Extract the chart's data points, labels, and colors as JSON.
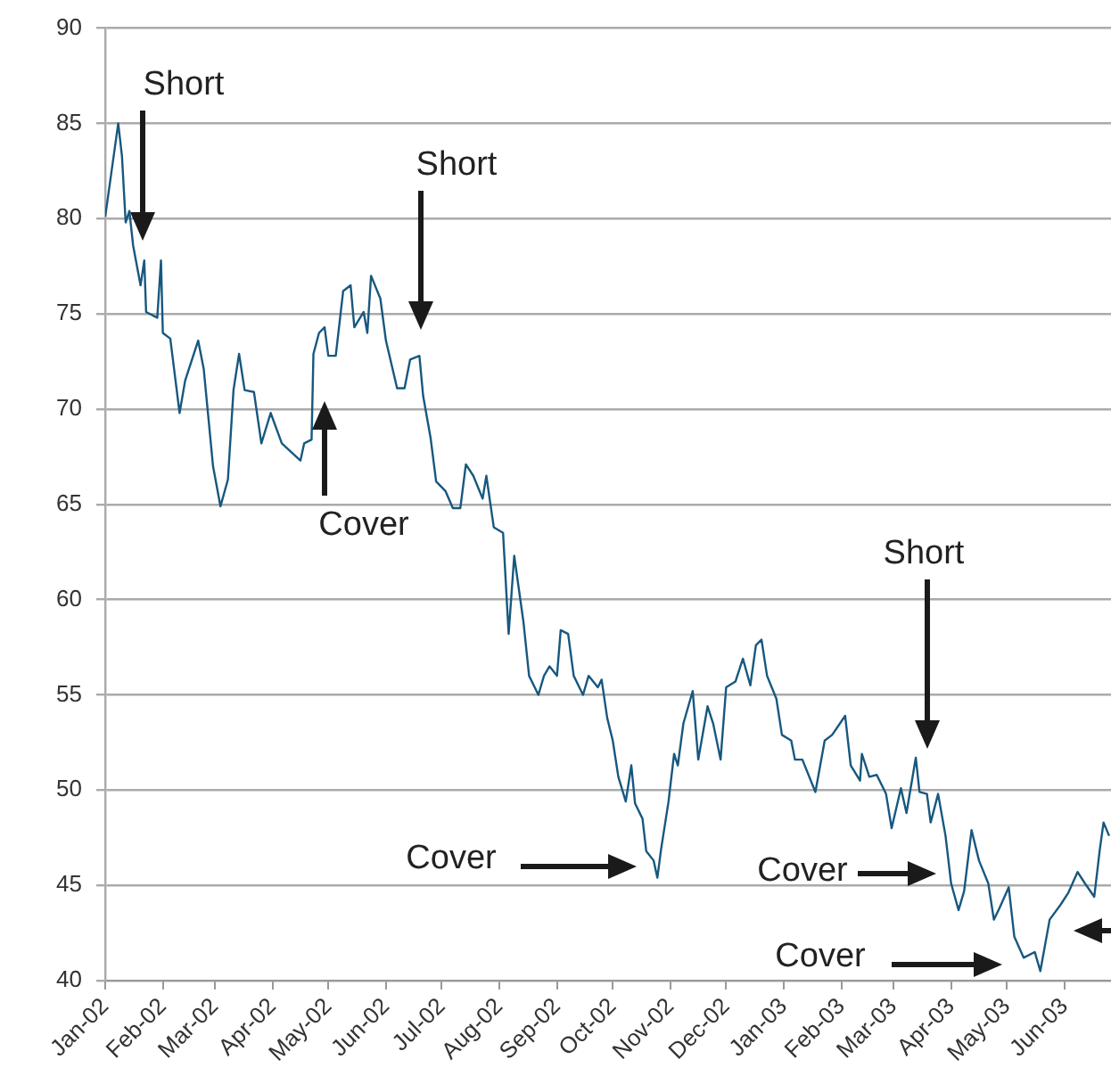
{
  "chart_data": {
    "type": "line",
    "x": [
      "2002-01-01",
      "2002-01-08",
      "2002-01-10",
      "2002-01-12",
      "2002-01-14",
      "2002-01-16",
      "2002-01-20",
      "2002-01-22",
      "2002-01-23",
      "2002-01-29",
      "2002-01-31",
      "2002-02-01",
      "2002-02-05",
      "2002-02-10",
      "2002-02-13",
      "2002-02-20",
      "2002-02-23",
      "2002-02-28",
      "2002-03-04",
      "2002-03-08",
      "2002-03-11",
      "2002-03-14",
      "2002-03-17",
      "2002-03-22",
      "2002-03-26",
      "2002-03-31",
      "2002-04-06",
      "2002-04-16",
      "2002-04-18",
      "2002-04-22",
      "2002-04-23",
      "2002-04-26",
      "2002-04-29",
      "2002-05-01",
      "2002-05-05",
      "2002-05-09",
      "2002-05-13",
      "2002-05-15",
      "2002-05-20",
      "2002-05-22",
      "2002-05-24",
      "2002-05-29",
      "2002-06-01",
      "2002-06-07",
      "2002-06-11",
      "2002-06-14",
      "2002-06-19",
      "2002-06-21",
      "2002-06-25",
      "2002-06-28",
      "2002-07-03",
      "2002-07-07",
      "2002-07-11",
      "2002-07-14",
      "2002-07-18",
      "2002-07-23",
      "2002-07-25",
      "2002-07-29",
      "2002-08-03",
      "2002-08-06",
      "2002-08-09",
      "2002-08-14",
      "2002-08-17",
      "2002-08-22",
      "2002-08-25",
      "2002-08-28",
      "2002-09-01",
      "2002-09-03",
      "2002-09-07",
      "2002-09-10",
      "2002-09-15",
      "2002-09-18",
      "2002-09-23",
      "2002-09-25",
      "2002-09-28",
      "2002-10-01",
      "2002-10-04",
      "2002-10-08",
      "2002-10-11",
      "2002-10-13",
      "2002-10-17",
      "2002-10-19",
      "2002-10-23",
      "2002-10-25",
      "2002-10-27",
      "2002-10-31",
      "2002-11-03",
      "2002-11-05",
      "2002-11-08",
      "2002-11-13",
      "2002-11-16",
      "2002-11-21",
      "2002-11-24",
      "2002-11-28",
      "2002-12-01",
      "2002-12-06",
      "2002-12-10",
      "2002-12-14",
      "2002-12-17",
      "2002-12-20",
      "2002-12-23",
      "2002-12-28",
      "2002-12-31",
      "2003-01-05",
      "2003-01-07",
      "2003-01-11",
      "2003-01-18",
      "2003-01-23",
      "2003-01-27",
      "2003-02-03",
      "2003-02-06",
      "2003-02-11",
      "2003-02-12",
      "2003-02-16",
      "2003-02-20",
      "2003-02-25",
      "2003-02-28",
      "2003-03-05",
      "2003-03-08",
      "2003-03-13",
      "2003-03-15",
      "2003-03-19",
      "2003-03-21",
      "2003-03-25",
      "2003-03-29",
      "2003-04-01",
      "2003-04-05",
      "2003-04-08",
      "2003-04-12",
      "2003-04-16",
      "2003-04-21",
      "2003-04-24",
      "2003-04-27",
      "2003-05-02",
      "2003-05-05",
      "2003-05-10",
      "2003-05-16",
      "2003-05-19",
      "2003-05-24",
      "2003-05-30",
      "2003-06-03",
      "2003-06-08",
      "2003-06-12",
      "2003-06-17",
      "2003-06-20",
      "2003-06-22",
      "2003-06-25"
    ],
    "series": [
      {
        "color": "#17587f",
        "values": [
          80.1,
          85.0,
          83.3,
          79.8,
          80.4,
          78.6,
          76.5,
          77.8,
          75.1,
          74.8,
          77.8,
          74.0,
          73.7,
          69.8,
          71.5,
          73.6,
          72.1,
          67.0,
          64.9,
          66.3,
          71.0,
          72.9,
          71.0,
          70.9,
          68.2,
          69.8,
          68.2,
          67.3,
          68.2,
          68.4,
          72.9,
          74.0,
          74.3,
          72.8,
          72.8,
          76.2,
          76.5,
          74.3,
          75.1,
          74.0,
          77.0,
          75.8,
          73.6,
          71.1,
          71.1,
          72.6,
          72.8,
          70.7,
          68.5,
          66.2,
          65.7,
          64.8,
          64.8,
          67.1,
          66.5,
          65.3,
          66.5,
          63.8,
          63.5,
          58.2,
          62.3,
          58.8,
          56.0,
          55.0,
          56.0,
          56.5,
          56.0,
          58.4,
          58.2,
          56.0,
          55.0,
          56.0,
          55.4,
          55.8,
          53.8,
          52.6,
          50.7,
          49.4,
          51.3,
          49.3,
          48.5,
          46.8,
          46.3,
          45.4,
          46.9,
          49.4,
          51.9,
          51.3,
          53.5,
          55.2,
          51.6,
          54.4,
          53.5,
          51.6,
          55.4,
          55.7,
          56.9,
          55.5,
          57.6,
          57.9,
          56.0,
          54.8,
          52.9,
          52.6,
          51.6,
          51.6,
          49.9,
          52.6,
          52.9,
          53.9,
          51.3,
          50.5,
          51.9,
          50.7,
          50.8,
          49.8,
          48.0,
          50.1,
          48.8,
          51.7,
          49.9,
          49.8,
          48.3,
          49.8,
          47.6,
          45.1,
          43.7,
          44.7,
          47.9,
          46.3,
          45.1,
          43.2,
          43.8,
          44.9,
          42.3,
          41.2,
          41.5,
          40.5,
          43.2,
          44.0,
          44.6,
          45.7,
          45.1,
          44.4,
          46.9,
          48.3,
          47.6
        ]
      }
    ],
    "xlim": [
      "2002-01-01",
      "2003-06-26"
    ],
    "xticks": [
      {
        "value": "2002-01-01",
        "label": "Jan-02"
      },
      {
        "value": "2002-02-01",
        "label": "Feb-02"
      },
      {
        "value": "2002-03-01",
        "label": "Mar-02"
      },
      {
        "value": "2002-04-01",
        "label": "Apr-02"
      },
      {
        "value": "2002-05-01",
        "label": "May-02"
      },
      {
        "value": "2002-06-01",
        "label": "Jun-02"
      },
      {
        "value": "2002-07-01",
        "label": "Jul-02"
      },
      {
        "value": "2002-08-01",
        "label": "Aug-02"
      },
      {
        "value": "2002-09-01",
        "label": "Sep-02"
      },
      {
        "value": "2002-10-01",
        "label": "Oct-02"
      },
      {
        "value": "2002-11-01",
        "label": "Nov-02"
      },
      {
        "value": "2002-12-01",
        "label": "Dec-02"
      },
      {
        "value": "2003-01-01",
        "label": "Jan-03"
      },
      {
        "value": "2003-02-01",
        "label": "Feb-03"
      },
      {
        "value": "2003-03-01",
        "label": "Mar-03"
      },
      {
        "value": "2003-04-01",
        "label": "Apr-03"
      },
      {
        "value": "2003-05-01",
        "label": "May-03"
      },
      {
        "value": "2003-06-01",
        "label": "Jun-03"
      }
    ],
    "ylim": [
      40,
      90
    ],
    "yticks": [
      40,
      45,
      50,
      55,
      60,
      65,
      70,
      75,
      80,
      85,
      90
    ],
    "grid": "y",
    "legend": false,
    "marker": "none",
    "line_style": "solid",
    "annotations": [
      "Short",
      "Cover",
      "Short",
      "Cover",
      "Short",
      "Cover",
      "Cover"
    ]
  }
}
